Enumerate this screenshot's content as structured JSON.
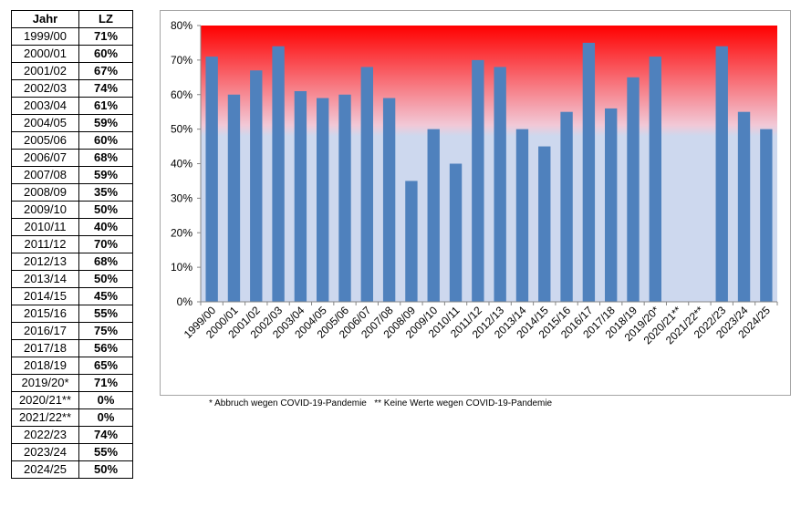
{
  "table": {
    "header_year": "Jahr",
    "header_value": "LZ",
    "rows": [
      {
        "year": "1999/00",
        "value": "71%"
      },
      {
        "year": "2000/01",
        "value": "60%"
      },
      {
        "year": "2001/02",
        "value": "67%"
      },
      {
        "year": "2002/03",
        "value": "74%"
      },
      {
        "year": "2003/04",
        "value": "61%"
      },
      {
        "year": "2004/05",
        "value": "59%"
      },
      {
        "year": "2005/06",
        "value": "60%"
      },
      {
        "year": "2006/07",
        "value": "68%"
      },
      {
        "year": "2007/08",
        "value": "59%"
      },
      {
        "year": "2008/09",
        "value": "35%"
      },
      {
        "year": "2009/10",
        "value": "50%"
      },
      {
        "year": "2010/11",
        "value": "40%"
      },
      {
        "year": "2011/12",
        "value": "70%"
      },
      {
        "year": "2012/13",
        "value": "68%"
      },
      {
        "year": "2013/14",
        "value": "50%"
      },
      {
        "year": "2014/15",
        "value": "45%"
      },
      {
        "year": "2015/16",
        "value": "55%"
      },
      {
        "year": "2016/17",
        "value": "75%"
      },
      {
        "year": "2017/18",
        "value": "56%"
      },
      {
        "year": "2018/19",
        "value": "65%"
      },
      {
        "year": "2019/20*",
        "value": "71%"
      },
      {
        "year": "2020/21**",
        "value": "0%"
      },
      {
        "year": "2021/22**",
        "value": "0%"
      },
      {
        "year": "2022/23",
        "value": "74%"
      },
      {
        "year": "2023/24",
        "value": "55%"
      },
      {
        "year": "2024/25",
        "value": "50%"
      }
    ]
  },
  "chart_data": {
    "type": "bar",
    "categories": [
      "1999/00",
      "2000/01",
      "2001/02",
      "2002/03",
      "2003/04",
      "2004/05",
      "2005/06",
      "2006/07",
      "2007/08",
      "2008/09",
      "2009/10",
      "2010/11",
      "2011/12",
      "2012/13",
      "2013/14",
      "2014/15",
      "2015/16",
      "2016/17",
      "2017/18",
      "2018/19",
      "2019/20*",
      "2020/21**",
      "2021/22**",
      "2022/23",
      "2023/24",
      "2024/25"
    ],
    "values": [
      71,
      60,
      67,
      74,
      61,
      59,
      60,
      68,
      59,
      35,
      50,
      40,
      70,
      68,
      50,
      45,
      55,
      75,
      56,
      65,
      71,
      0,
      0,
      74,
      55,
      50
    ],
    "ylim": [
      0,
      80
    ],
    "yticks": [
      0,
      10,
      20,
      30,
      40,
      50,
      60,
      70,
      80
    ],
    "ytick_labels": [
      "0%",
      "10%",
      "20%",
      "30%",
      "40%",
      "50%",
      "60%",
      "70%",
      "80%"
    ],
    "title": "",
    "xlabel": "",
    "ylabel": "",
    "grid": false,
    "legend": "none",
    "colors": {
      "bar": "#4f81bd",
      "background_top": "#ff0000",
      "background_bottom": "#cdd8ee",
      "axis": "#868686"
    }
  },
  "footnotes": {
    "text": "* Abbruch wegen COVID-19-Pandemie   ** Keine Werte wegen COVID-19-Pandemie"
  }
}
